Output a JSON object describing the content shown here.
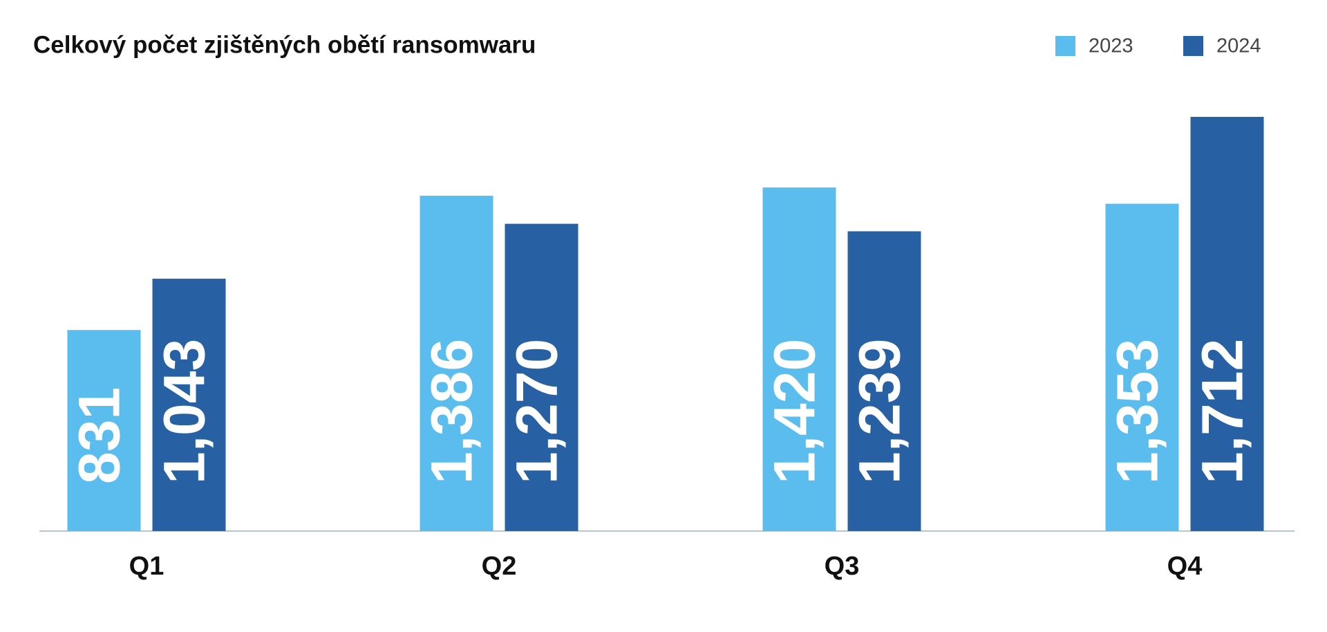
{
  "chart_data": {
    "type": "bar",
    "title": "Celkový počet zjištěných obětí ransomwaru",
    "categories": [
      "Q1",
      "Q2",
      "Q3",
      "Q4"
    ],
    "series": [
      {
        "name": "2023",
        "color": "#5bbdee",
        "values": [
          831,
          1386,
          1420,
          1353
        ],
        "value_labels": [
          "831",
          "1,386",
          "1,420",
          "1,353"
        ]
      },
      {
        "name": "2024",
        "color": "#2860a4",
        "values": [
          1043,
          1270,
          1239,
          1712
        ],
        "value_labels": [
          "1,043",
          "1,270",
          "1,239",
          "1,712"
        ]
      }
    ],
    "legend": "top-right"
  }
}
